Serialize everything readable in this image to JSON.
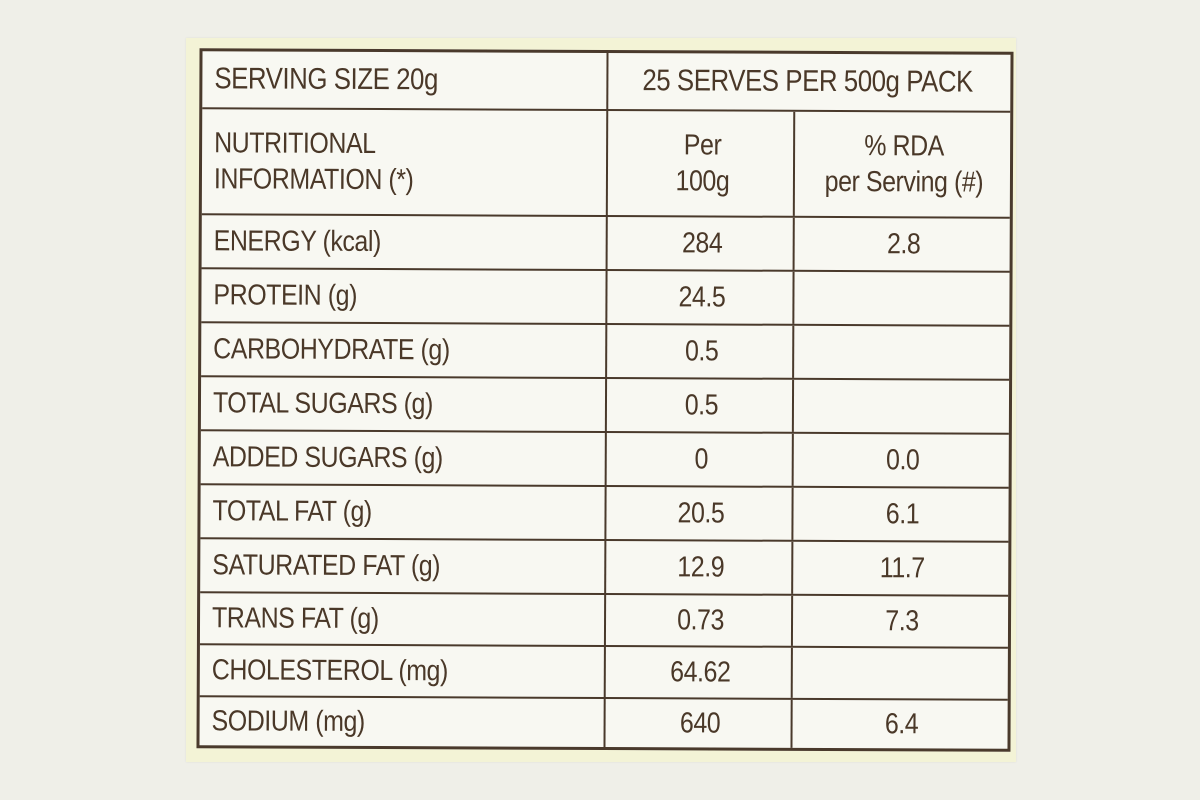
{
  "label": {
    "serving_size": "SERVING SIZE 20g",
    "serves_per_pack": "25 SERVES PER 500g PACK",
    "info_header_line1": "NUTRITIONAL",
    "info_header_line2": "INFORMATION (*)",
    "per100_line1": "Per",
    "per100_line2": "100g",
    "rda_line1": "% RDA",
    "rda_line2": "per Serving (#)"
  },
  "rows": [
    {
      "name": "ENERGY (kcal)",
      "per100g": "284",
      "rda": "2.8"
    },
    {
      "name": "PROTEIN (g)",
      "per100g": "24.5",
      "rda": ""
    },
    {
      "name": "CARBOHYDRATE (g)",
      "per100g": "0.5",
      "rda": ""
    },
    {
      "name": "TOTAL SUGARS (g)",
      "per100g": "0.5",
      "rda": ""
    },
    {
      "name": "ADDED SUGARS (g)",
      "per100g": "0",
      "rda": "0.0"
    },
    {
      "name": "TOTAL FAT (g)",
      "per100g": "20.5",
      "rda": "6.1"
    },
    {
      "name": "SATURATED FAT (g)",
      "per100g": "12.9",
      "rda": "11.7"
    },
    {
      "name": "TRANS FAT (g)",
      "per100g": "0.73",
      "rda": "7.3"
    },
    {
      "name": "CHOLESTEROL (mg)",
      "per100g": "64.62",
      "rda": ""
    },
    {
      "name": "SODIUM (mg)",
      "per100g": "640",
      "rda": "6.4"
    }
  ],
  "colors": {
    "background": "#efefe8",
    "label_paper": "#f3f3d6",
    "table_bg": "#f8f8f2",
    "ink": "#4a3828"
  }
}
